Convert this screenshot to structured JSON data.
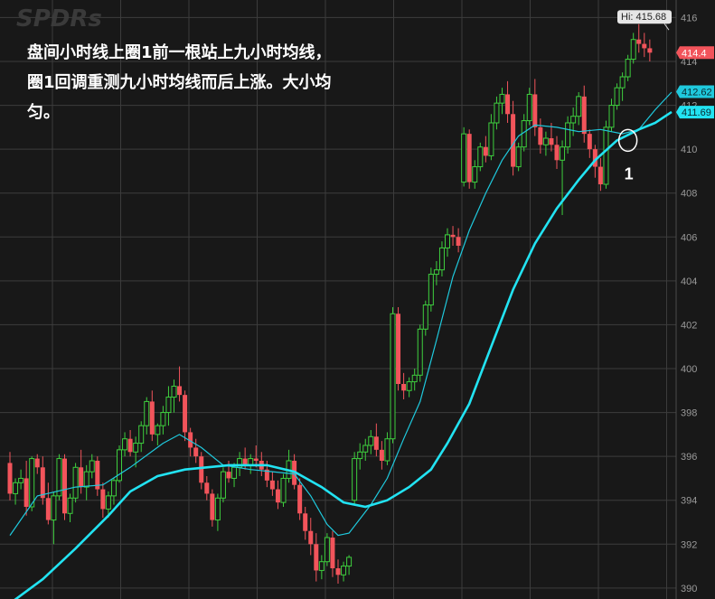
{
  "watermark": "SPDRs",
  "annotation": {
    "text": "盘间小时线上圈1前一根站上九小时均线，\n圈1回调重测九小时均线而后上涨。大小均\n匀。"
  },
  "chart_data": {
    "type": "candlestick",
    "ylim": [
      389.5,
      416.8
    ],
    "y_ticks": [
      390,
      392,
      394,
      396,
      398,
      400,
      402,
      404,
      406,
      408,
      410,
      412,
      414,
      416
    ],
    "grid": true,
    "colors": {
      "up": "#3ecf3e",
      "down": "#f2545b",
      "fast_ma": "#1fc9dd",
      "slow_ma": "#22e3f2",
      "grid": "#3c3c3c",
      "axis_text": "#9a9a9a"
    },
    "high_label": "Hi: 415.68",
    "price_tags": [
      {
        "label": "414.4",
        "value": 414.4,
        "bg": "#f2545b"
      },
      {
        "label": "412.62",
        "value": 412.62,
        "bg": "#1fc9dd"
      },
      {
        "label": "411.69",
        "value": 411.69,
        "bg": "#22e3f2"
      }
    ],
    "marker": {
      "label": "1",
      "bar_index": 113,
      "value": 410.4
    },
    "candles": [
      [
        395.7,
        396.2,
        394.0,
        394.3
      ],
      [
        394.3,
        395.0,
        393.8,
        394.8
      ],
      [
        394.8,
        395.4,
        394.5,
        395.0
      ],
      [
        395.0,
        395.8,
        393.3,
        393.7
      ],
      [
        393.7,
        396.0,
        393.5,
        395.9
      ],
      [
        395.9,
        396.1,
        395.2,
        395.5
      ],
      [
        395.5,
        396.0,
        393.8,
        394.1
      ],
      [
        394.1,
        394.8,
        392.9,
        393.1
      ],
      [
        393.1,
        394.4,
        392.0,
        394.2
      ],
      [
        394.2,
        396.1,
        394.0,
        395.9
      ],
      [
        395.9,
        396.1,
        393.1,
        393.4
      ],
      [
        393.4,
        394.3,
        393.0,
        394.1
      ],
      [
        394.1,
        395.7,
        393.9,
        395.5
      ],
      [
        395.5,
        396.3,
        394.3,
        394.6
      ],
      [
        394.6,
        395.6,
        394.0,
        395.3
      ],
      [
        395.3,
        396.1,
        395.0,
        395.8
      ],
      [
        395.8,
        396.0,
        394.2,
        394.5
      ],
      [
        394.5,
        394.8,
        393.2,
        393.6
      ],
      [
        393.6,
        394.4,
        393.2,
        394.2
      ],
      [
        394.2,
        395.0,
        393.8,
        394.9
      ],
      [
        394.9,
        396.5,
        394.8,
        396.3
      ],
      [
        396.3,
        397.1,
        396.0,
        396.8
      ],
      [
        396.8,
        397.2,
        396.0,
        396.2
      ],
      [
        396.2,
        396.9,
        395.5,
        396.6
      ],
      [
        396.6,
        397.6,
        396.2,
        397.4
      ],
      [
        397.4,
        398.7,
        397.0,
        398.5
      ],
      [
        398.5,
        399.0,
        396.7,
        397.0
      ],
      [
        397.0,
        397.5,
        396.5,
        397.4
      ],
      [
        397.4,
        398.3,
        397.0,
        398.0
      ],
      [
        398.0,
        399.2,
        397.4,
        398.7
      ],
      [
        398.7,
        399.5,
        398.0,
        399.2
      ],
      [
        399.2,
        400.1,
        398.5,
        398.8
      ],
      [
        398.8,
        399.0,
        396.7,
        397.1
      ],
      [
        397.1,
        397.3,
        396.0,
        396.4
      ],
      [
        396.4,
        396.8,
        395.7,
        396.0
      ],
      [
        396.0,
        396.2,
        394.5,
        394.8
      ],
      [
        394.8,
        395.1,
        394.0,
        394.3
      ],
      [
        394.3,
        394.5,
        392.8,
        393.1
      ],
      [
        393.1,
        394.3,
        392.6,
        394.1
      ],
      [
        394.1,
        395.5,
        393.9,
        395.3
      ],
      [
        395.3,
        395.8,
        394.8,
        395.0
      ],
      [
        395.0,
        395.7,
        394.6,
        395.5
      ],
      [
        395.5,
        396.2,
        395.1,
        395.9
      ],
      [
        395.9,
        396.4,
        395.4,
        395.6
      ],
      [
        395.6,
        396.1,
        395.2,
        395.9
      ],
      [
        395.9,
        396.5,
        395.5,
        395.8
      ],
      [
        395.8,
        396.2,
        395.1,
        395.4
      ],
      [
        395.4,
        395.8,
        394.6,
        394.9
      ],
      [
        394.9,
        395.3,
        394.2,
        394.5
      ],
      [
        394.5,
        394.9,
        393.6,
        393.9
      ],
      [
        393.9,
        395.2,
        393.7,
        395.0
      ],
      [
        395.0,
        396.3,
        394.8,
        395.8
      ],
      [
        395.8,
        396.1,
        394.5,
        394.7
      ],
      [
        394.7,
        395.0,
        393.1,
        393.4
      ],
      [
        393.4,
        393.7,
        392.2,
        392.6
      ],
      [
        392.6,
        393.2,
        391.5,
        392.0
      ],
      [
        392.0,
        392.5,
        390.3,
        390.8
      ],
      [
        390.8,
        391.5,
        390.4,
        391.2
      ],
      [
        391.2,
        392.5,
        391.0,
        392.3
      ],
      [
        392.3,
        392.6,
        390.5,
        390.9
      ],
      [
        390.9,
        391.3,
        390.2,
        390.6
      ],
      [
        390.6,
        391.2,
        390.3,
        391.0
      ],
      [
        391.0,
        391.5,
        390.6,
        391.4
      ],
      [
        394.0,
        396.2,
        393.8,
        395.9
      ],
      [
        395.9,
        396.6,
        395.4,
        396.2
      ],
      [
        396.2,
        396.8,
        395.8,
        396.5
      ],
      [
        396.5,
        397.2,
        396.1,
        396.9
      ],
      [
        396.9,
        397.5,
        396.0,
        396.3
      ],
      [
        396.3,
        396.7,
        395.4,
        395.8
      ],
      [
        395.8,
        397.1,
        395.6,
        396.8
      ],
      [
        396.8,
        402.8,
        396.6,
        402.5
      ],
      [
        402.5,
        402.8,
        399.0,
        399.3
      ],
      [
        399.3,
        399.8,
        398.6,
        399.0
      ],
      [
        399.0,
        399.6,
        398.7,
        399.4
      ],
      [
        399.4,
        400.0,
        399.0,
        399.7
      ],
      [
        399.7,
        402.0,
        399.4,
        401.8
      ],
      [
        401.8,
        403.1,
        401.5,
        402.9
      ],
      [
        402.9,
        404.6,
        402.6,
        404.3
      ],
      [
        404.3,
        404.9,
        403.8,
        404.5
      ],
      [
        404.5,
        405.8,
        404.2,
        405.5
      ],
      [
        405.5,
        406.4,
        405.1,
        406.1
      ],
      [
        406.1,
        406.5,
        405.6,
        406.0
      ],
      [
        406.0,
        406.4,
        405.3,
        405.6
      ],
      [
        408.5,
        411.0,
        408.3,
        410.7
      ],
      [
        410.7,
        410.9,
        408.2,
        408.5
      ],
      [
        408.5,
        409.5,
        408.2,
        409.2
      ],
      [
        409.2,
        410.3,
        409.0,
        410.1
      ],
      [
        410.1,
        410.6,
        409.4,
        409.7
      ],
      [
        409.7,
        411.6,
        409.5,
        411.2
      ],
      [
        411.2,
        412.4,
        410.9,
        412.1
      ],
      [
        412.1,
        412.8,
        411.6,
        412.5
      ],
      [
        412.5,
        413.1,
        411.2,
        411.6
      ],
      [
        411.6,
        412.2,
        408.8,
        409.2
      ],
      [
        409.2,
        410.3,
        409.0,
        410.1
      ],
      [
        410.1,
        411.6,
        409.9,
        411.3
      ],
      [
        411.3,
        412.8,
        411.1,
        412.5
      ],
      [
        412.5,
        413.2,
        410.6,
        411.0
      ],
      [
        411.0,
        411.4,
        409.8,
        410.2
      ],
      [
        410.2,
        410.8,
        409.7,
        410.5
      ],
      [
        410.5,
        411.2,
        409.9,
        410.2
      ],
      [
        410.2,
        410.6,
        409.1,
        409.5
      ],
      [
        409.5,
        410.4,
        407.0,
        410.1
      ],
      [
        410.1,
        411.5,
        409.8,
        411.2
      ],
      [
        411.2,
        411.9,
        410.6,
        411.5
      ],
      [
        411.5,
        412.6,
        411.1,
        412.4
      ],
      [
        412.4,
        412.9,
        410.3,
        410.7
      ],
      [
        410.7,
        410.9,
        409.6,
        410.0
      ],
      [
        410.0,
        410.2,
        408.7,
        409.2
      ],
      [
        409.2,
        409.6,
        408.1,
        408.4
      ],
      [
        408.4,
        411.3,
        408.2,
        411.0
      ],
      [
        411.0,
        412.3,
        410.8,
        412.0
      ],
      [
        412.0,
        413.0,
        411.8,
        412.8
      ],
      [
        412.8,
        413.5,
        412.2,
        413.3
      ],
      [
        413.3,
        414.3,
        413.1,
        414.1
      ],
      [
        414.1,
        415.3,
        413.9,
        415.0
      ],
      [
        415.0,
        415.7,
        414.4,
        414.8
      ],
      [
        414.8,
        415.3,
        414.2,
        414.6
      ],
      [
        414.6,
        415.0,
        414.0,
        414.4
      ]
    ],
    "ma_fast": [
      [
        0,
        392.4
      ],
      [
        5,
        394.2
      ],
      [
        12,
        394.6
      ],
      [
        17,
        394.7
      ],
      [
        22,
        395.5
      ],
      [
        28,
        396.6
      ],
      [
        31,
        397.0
      ],
      [
        35,
        396.4
      ],
      [
        39,
        395.6
      ],
      [
        44,
        395.4
      ],
      [
        48,
        395.3
      ],
      [
        52,
        395.2
      ],
      [
        55,
        394.2
      ],
      [
        58,
        392.9
      ],
      [
        60,
        392.4
      ],
      [
        62,
        392.5
      ],
      [
        66,
        393.8
      ],
      [
        69,
        395.0
      ],
      [
        72,
        396.8
      ],
      [
        75,
        398.5
      ],
      [
        78,
        401.3
      ],
      [
        81,
        404.2
      ],
      [
        84,
        406.3
      ],
      [
        87,
        408.0
      ],
      [
        90,
        409.5
      ],
      [
        93,
        410.6
      ],
      [
        96,
        411.1
      ],
      [
        100,
        411.0
      ],
      [
        104,
        410.8
      ],
      [
        108,
        410.9
      ],
      [
        112,
        410.7
      ],
      [
        115,
        410.9
      ],
      [
        118,
        411.8
      ],
      [
        121,
        412.6
      ]
    ],
    "ma_slow": [
      [
        0,
        389.3
      ],
      [
        6,
        390.4
      ],
      [
        12,
        391.8
      ],
      [
        18,
        393.3
      ],
      [
        22,
        394.4
      ],
      [
        27,
        395.1
      ],
      [
        32,
        395.4
      ],
      [
        40,
        395.6
      ],
      [
        47,
        395.6
      ],
      [
        52,
        395.3
      ],
      [
        57,
        394.6
      ],
      [
        61,
        393.9
      ],
      [
        65,
        393.7
      ],
      [
        69,
        394.0
      ],
      [
        73,
        394.6
      ],
      [
        77,
        395.4
      ],
      [
        80,
        396.6
      ],
      [
        84,
        398.4
      ],
      [
        88,
        401.0
      ],
      [
        92,
        403.6
      ],
      [
        96,
        405.7
      ],
      [
        100,
        407.3
      ],
      [
        104,
        408.6
      ],
      [
        107,
        409.5
      ],
      [
        111,
        410.4
      ],
      [
        115,
        410.9
      ],
      [
        118,
        411.2
      ],
      [
        121,
        411.7
      ]
    ]
  }
}
